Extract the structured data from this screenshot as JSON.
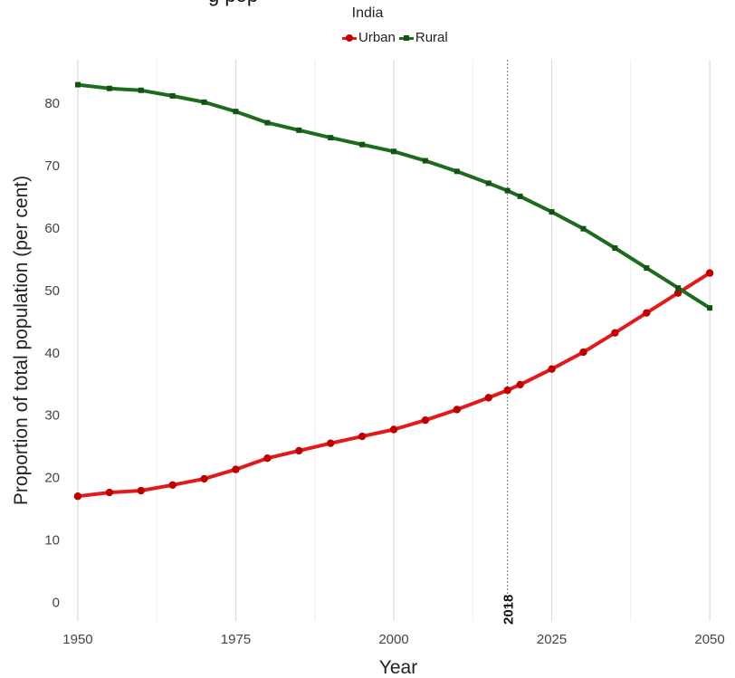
{
  "title_fragment": "g    pop",
  "chart_data": {
    "type": "line",
    "subtitle": "India",
    "xlabel": "Year",
    "ylabel": "Proportion of total population (per cent)",
    "xlim": [
      1948,
      2054
    ],
    "ylim": [
      -3,
      87
    ],
    "x_ticks": [
      1950,
      1975,
      2000,
      2025,
      2050
    ],
    "y_ticks": [
      0,
      10,
      20,
      30,
      40,
      50,
      60,
      70,
      80
    ],
    "grid": true,
    "legend_position": "top",
    "annotation": {
      "type": "vertical-line",
      "x": 2018,
      "label": "2018"
    },
    "x": [
      1950,
      1955,
      1960,
      1965,
      1970,
      1975,
      1980,
      1985,
      1990,
      1995,
      2000,
      2005,
      2010,
      2015,
      2018,
      2020,
      2025,
      2030,
      2035,
      2040,
      2045,
      2050
    ],
    "series": [
      {
        "name": "Urban",
        "color": "#e31a1c",
        "marker": "circle",
        "values": [
          17.0,
          17.6,
          17.9,
          18.8,
          19.8,
          21.3,
          23.1,
          24.3,
          25.5,
          26.6,
          27.7,
          29.2,
          30.9,
          32.8,
          34.0,
          34.9,
          37.4,
          40.1,
          43.2,
          46.4,
          49.6,
          52.8
        ]
      },
      {
        "name": "Rural",
        "color": "#1e6b1e",
        "marker": "square",
        "values": [
          83.0,
          82.4,
          82.1,
          81.2,
          80.2,
          78.7,
          76.9,
          75.7,
          74.5,
          73.4,
          72.3,
          70.8,
          69.1,
          67.2,
          66.0,
          65.1,
          62.6,
          59.9,
          56.8,
          53.6,
          50.4,
          47.2
        ]
      }
    ]
  }
}
